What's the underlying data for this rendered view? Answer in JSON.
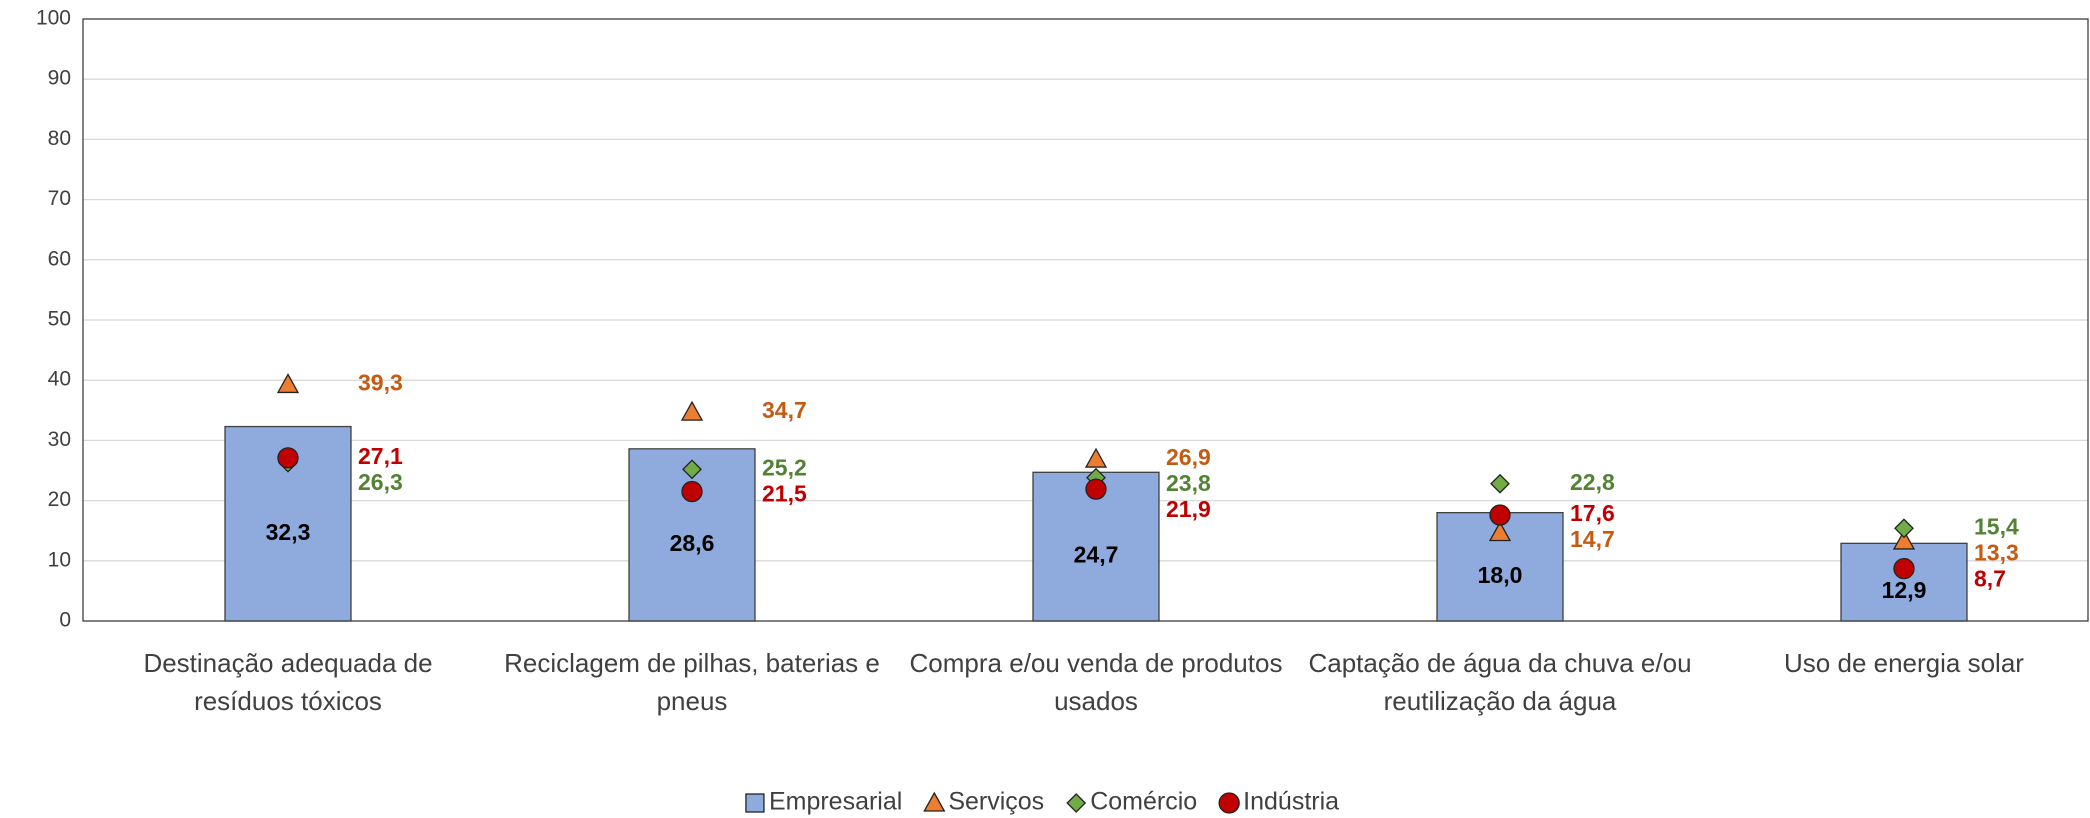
{
  "chart_data": {
    "type": "bar",
    "categories": [
      "Destinação adequada de resíduos tóxicos",
      "Reciclagem de pilhas, baterias e pneus",
      "Compra e/ou venda de produtos usados",
      "Captação de água da chuva e/ou reutilização da água",
      "Uso de energia solar"
    ],
    "series": [
      {
        "name": "Empresarial",
        "marker": "bar",
        "color": "#8faadc",
        "label_color": "#000000",
        "values": [
          32.3,
          28.6,
          24.7,
          18.0,
          12.9
        ],
        "value_labels": [
          "32,3",
          "28,6",
          "24,7",
          "18,0",
          "12,9"
        ]
      },
      {
        "name": "Serviços",
        "marker": "triangle",
        "color": "#ed7d31",
        "label_color": "#c55a11",
        "values": [
          39.3,
          34.7,
          26.9,
          14.7,
          13.3
        ],
        "value_labels": [
          "39,3",
          "34,7",
          "26,9",
          "14,7",
          "13,3"
        ]
      },
      {
        "name": "Comércio",
        "marker": "diamond",
        "color": "#70ad47",
        "label_color": "#548235",
        "values": [
          26.3,
          25.2,
          23.8,
          22.8,
          15.4
        ],
        "value_labels": [
          "26,3",
          "25,2",
          "23,8",
          "22,8",
          "15,4"
        ]
      },
      {
        "name": "Indústria",
        "marker": "circle",
        "color": "#c00000",
        "label_color": "#c00000",
        "values": [
          27.1,
          21.5,
          21.9,
          17.6,
          8.7
        ],
        "value_labels": [
          "27,1",
          "21,5",
          "21,9",
          "17,6",
          "8,7"
        ]
      }
    ],
    "ylim": [
      0,
      100
    ],
    "yticks": [
      0,
      10,
      20,
      30,
      40,
      50,
      60,
      70,
      80,
      90,
      100
    ],
    "grid": true,
    "legend": "bottom"
  }
}
